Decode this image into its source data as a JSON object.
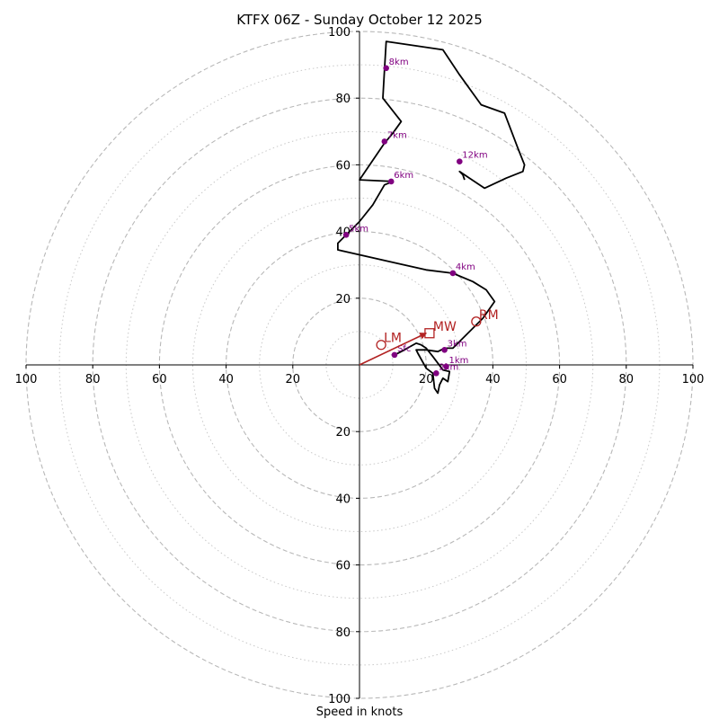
{
  "chart_data": {
    "type": "hodograph",
    "title": "KTFX 06Z - Sunday October 12 2025",
    "xlabel": "Speed in knots",
    "range": [
      -100,
      100
    ],
    "rings_major": [
      20,
      40,
      60,
      80,
      100
    ],
    "rings_minor": [
      10,
      30,
      50,
      70,
      90
    ],
    "x_ticks": [
      {
        "value": -100,
        "label": "100"
      },
      {
        "value": -80,
        "label": "80"
      },
      {
        "value": -60,
        "label": "60"
      },
      {
        "value": -40,
        "label": "40"
      },
      {
        "value": -20,
        "label": "20"
      },
      {
        "value": 20,
        "label": "20"
      },
      {
        "value": 40,
        "label": "40"
      },
      {
        "value": 60,
        "label": "60"
      },
      {
        "value": 80,
        "label": "80"
      },
      {
        "value": 100,
        "label": "100"
      }
    ],
    "y_ticks": [
      {
        "value": 100,
        "label": "100"
      },
      {
        "value": 80,
        "label": "80"
      },
      {
        "value": 60,
        "label": "60"
      },
      {
        "value": 40,
        "label": "40"
      },
      {
        "value": 20,
        "label": "20"
      },
      {
        "value": -20,
        "label": "20"
      },
      {
        "value": -40,
        "label": "40"
      },
      {
        "value": -60,
        "label": "60"
      },
      {
        "value": -80,
        "label": "80"
      },
      {
        "value": -100,
        "label": "100"
      }
    ],
    "hodograph_line": {
      "color": "#000000",
      "points": [
        [
          10.5,
          3.0
        ],
        [
          12.5,
          4.0
        ],
        [
          17.0,
          6.5
        ],
        [
          18.5,
          6.0
        ],
        [
          20.0,
          5.0
        ],
        [
          22.0,
          2.5
        ],
        [
          25.0,
          -1.5
        ],
        [
          27.0,
          -2.0
        ],
        [
          26.5,
          -5.0
        ],
        [
          25.0,
          -4.0
        ],
        [
          24.0,
          -6.0
        ],
        [
          23.5,
          -8.5
        ],
        [
          22.5,
          -7.0
        ],
        [
          22.0,
          -2.5
        ],
        [
          20.0,
          -1.0
        ],
        [
          17.5,
          3.5
        ],
        [
          17.0,
          4.5
        ],
        [
          20.0,
          4.5
        ],
        [
          23.5,
          4.0
        ],
        [
          25.5,
          5.0
        ],
        [
          28.0,
          5.0
        ],
        [
          30.0,
          7.0
        ],
        [
          34.0,
          11.0
        ],
        [
          37.0,
          14.0
        ],
        [
          40.5,
          19.0
        ],
        [
          38.0,
          22.5
        ],
        [
          34.0,
          25.0
        ],
        [
          28.0,
          27.5
        ],
        [
          20.0,
          28.5
        ],
        [
          11.0,
          30.5
        ],
        [
          -6.5,
          34.5
        ],
        [
          -6.5,
          36.5
        ],
        [
          -4.0,
          39.0
        ],
        [
          0.0,
          43.0
        ],
        [
          4.0,
          48.0
        ],
        [
          7.5,
          54.0
        ],
        [
          10.0,
          55.0
        ],
        [
          0.0,
          55.5
        ],
        [
          7.5,
          66.5
        ],
        [
          10.0,
          69.5
        ],
        [
          12.5,
          73.0
        ],
        [
          7.0,
          80.0
        ],
        [
          7.5,
          88.5
        ],
        [
          8.0,
          97.0
        ],
        [
          25.0,
          94.5
        ],
        [
          30.0,
          87.0
        ],
        [
          36.5,
          78.0
        ],
        [
          43.5,
          75.5
        ],
        [
          47.5,
          65.0
        ],
        [
          49.5,
          60.0
        ],
        [
          49.0,
          58.0
        ],
        [
          44.0,
          56.0
        ],
        [
          37.5,
          53.0
        ],
        [
          33.0,
          56.0
        ],
        [
          30.0,
          58.0
        ],
        [
          31.0,
          57.0
        ],
        [
          31.5,
          55.5
        ]
      ]
    },
    "height_markers": {
      "color": "#800080",
      "points": [
        {
          "label": "Sfc",
          "x": 10.5,
          "y": 3.0
        },
        {
          "label": "1km",
          "x": 26.0,
          "y": -0.5
        },
        {
          "label": "2km",
          "x": 23.0,
          "y": -2.5
        },
        {
          "label": "3km",
          "x": 25.5,
          "y": 4.5
        },
        {
          "label": "4km",
          "x": 28.0,
          "y": 27.5
        },
        {
          "label": "5km",
          "x": -4.0,
          "y": 39.0
        },
        {
          "label": "6km",
          "x": 9.5,
          "y": 55.0
        },
        {
          "label": "7km",
          "x": 7.5,
          "y": 67.0
        },
        {
          "label": "8km",
          "x": 8.0,
          "y": 89.0
        },
        {
          "label": "12km",
          "x": 30.0,
          "y": 61.0
        }
      ]
    },
    "storm_motion": {
      "color": "#b22222",
      "bunkers_right": {
        "label": "RM",
        "x": 35.0,
        "y": 13.0
      },
      "bunkers_left": {
        "label": "LM",
        "x": 6.5,
        "y": 6.0
      },
      "mean_wind": {
        "label": "MW",
        "x": 21.0,
        "y": 9.5
      },
      "arrow": {
        "from": [
          0,
          0
        ],
        "to": [
          20.0,
          9.5
        ]
      }
    }
  }
}
